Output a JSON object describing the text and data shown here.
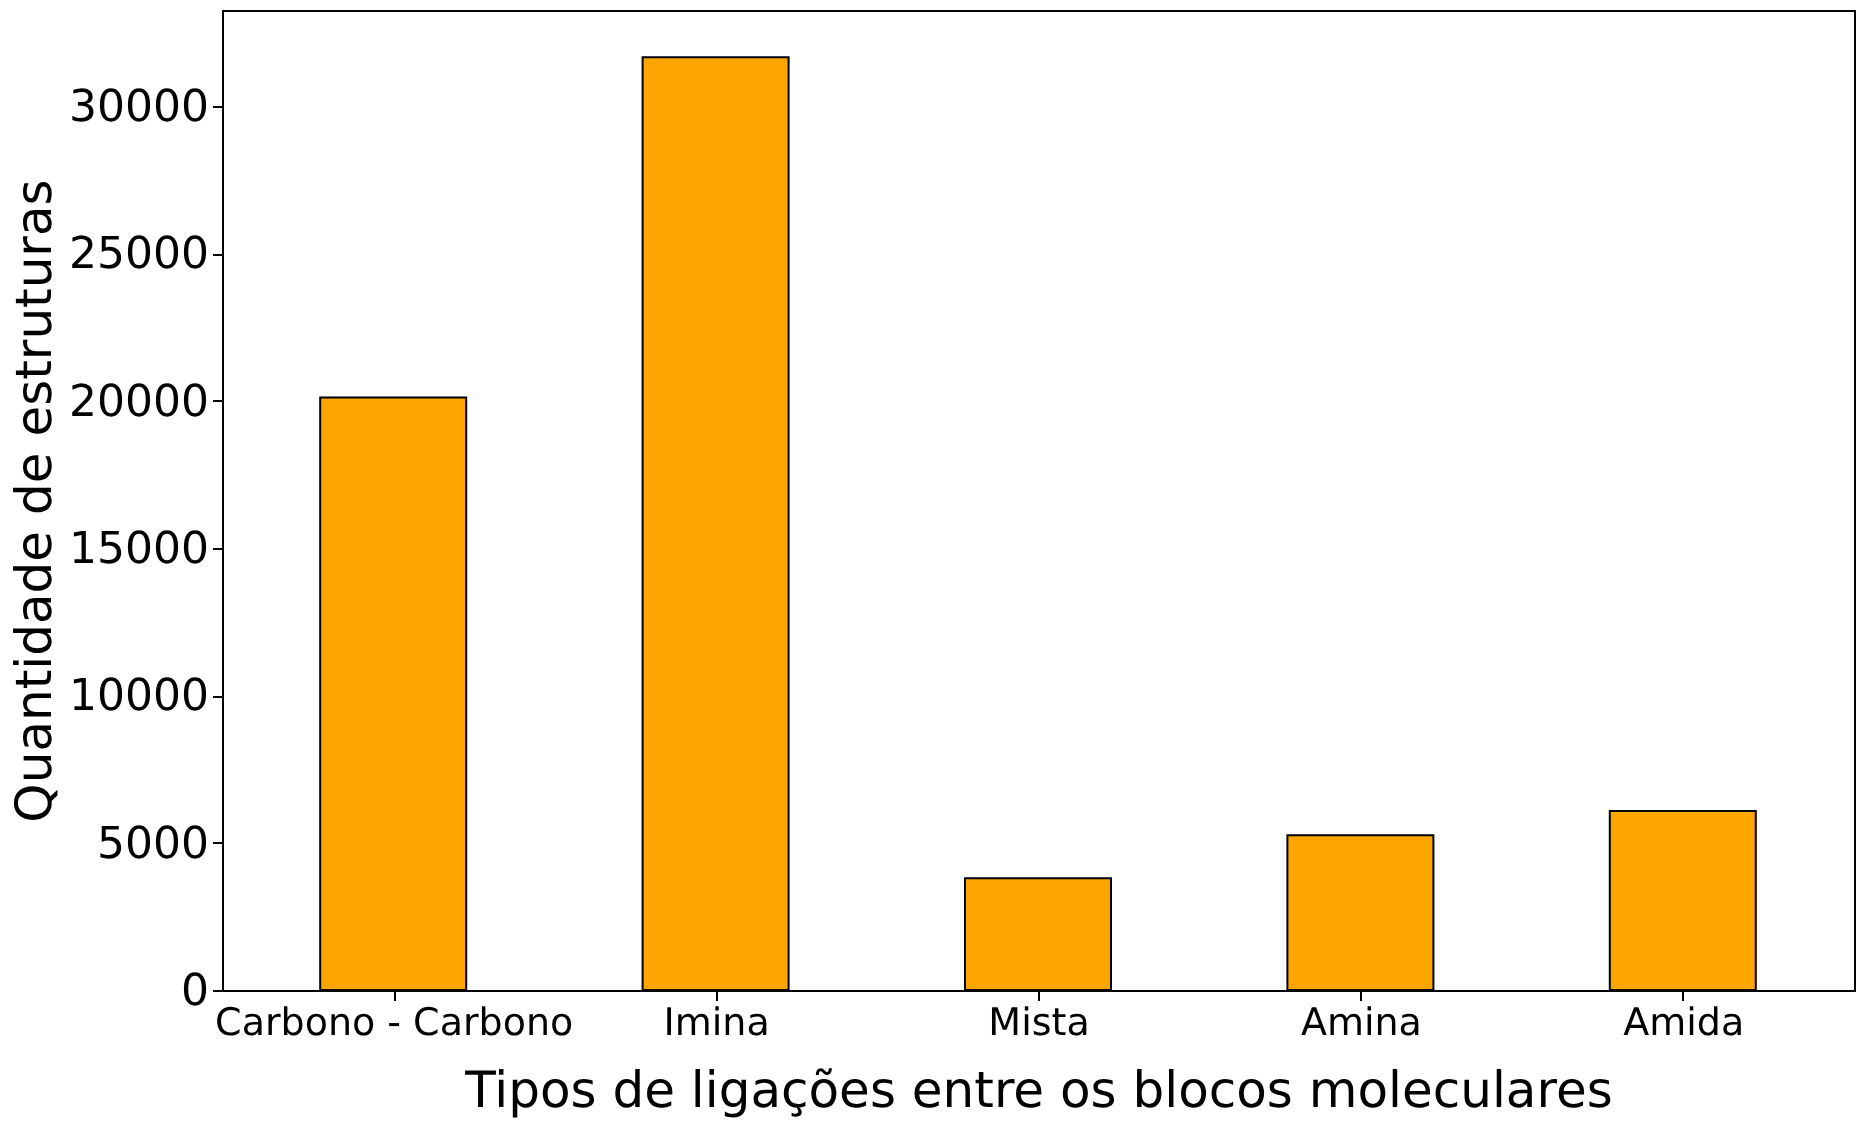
{
  "chart_data": {
    "type": "bar",
    "xlabel": "Tipos de ligações entre os blocos moleculares",
    "ylabel": "Quantidade de estruturas",
    "categories": [
      "Carbono - Carbono",
      "Imina",
      "Mista",
      "Amina",
      "Amida"
    ],
    "values": [
      20100,
      31650,
      3790,
      5250,
      6070
    ],
    "color": "#ffa500",
    "ylim": [
      0,
      33250
    ],
    "yticks": [
      0,
      5000,
      10000,
      15000,
      20000,
      25000,
      30000
    ],
    "grid": false
  }
}
